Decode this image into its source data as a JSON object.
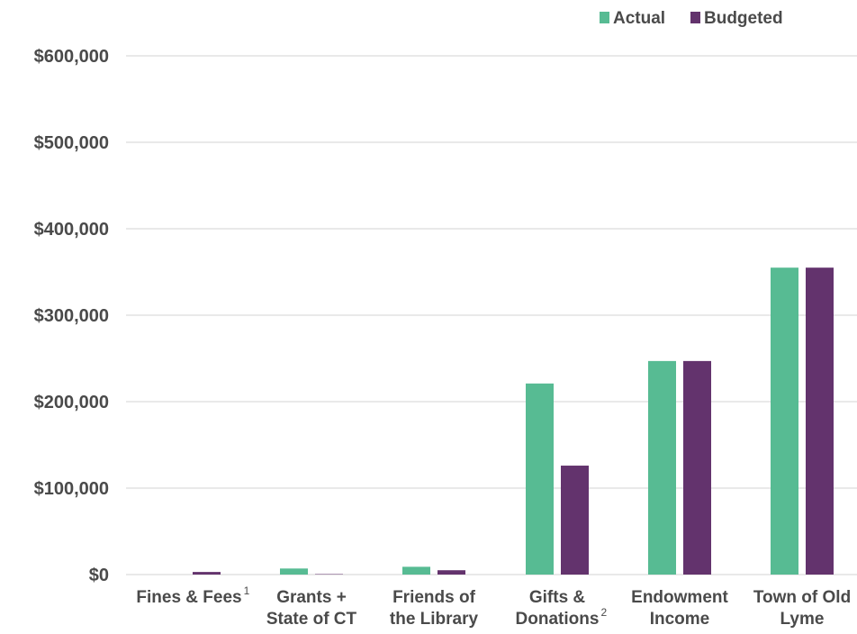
{
  "chart_data": {
    "type": "bar",
    "title": "",
    "xlabel": "",
    "ylabel": "",
    "categories": [
      {
        "lines": [
          "Fines & Fees"
        ],
        "footnote": "1"
      },
      {
        "lines": [
          "Grants +",
          "State of CT"
        ],
        "footnote": ""
      },
      {
        "lines": [
          "Friends of",
          "the Library"
        ],
        "footnote": ""
      },
      {
        "lines": [
          "Gifts &",
          "Donations"
        ],
        "footnote": "2"
      },
      {
        "lines": [
          "Endowment",
          "Income"
        ],
        "footnote": ""
      },
      {
        "lines": [
          "Town of Old",
          "Lyme"
        ],
        "footnote": ""
      }
    ],
    "series": [
      {
        "name": "Actual",
        "color": "#57bb93",
        "values": [
          0,
          7000,
          9000,
          221000,
          247000,
          355000
        ]
      },
      {
        "name": "Budgeted",
        "color": "#63336d",
        "values": [
          3000,
          500,
          5000,
          126000,
          247000,
          355000
        ]
      }
    ],
    "ylim": [
      0,
      600000
    ],
    "yticks": [
      {
        "value": 0,
        "label": "$0"
      },
      {
        "value": 100000,
        "label": "$100,000"
      },
      {
        "value": 200000,
        "label": "$200,000"
      },
      {
        "value": 300000,
        "label": "$300,000"
      },
      {
        "value": 400000,
        "label": "$400,000"
      },
      {
        "value": 500000,
        "label": "$500,000"
      },
      {
        "value": 600000,
        "label": "$600,000"
      }
    ],
    "grid": true,
    "gridColor": "#dcdcdc",
    "legend": "top-right"
  }
}
